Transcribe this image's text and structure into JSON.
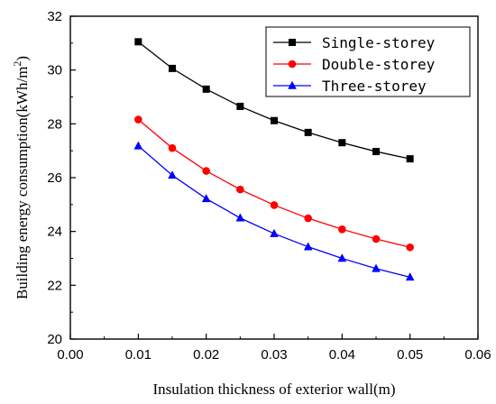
{
  "chart_data": {
    "type": "line",
    "xlabel": "Insulation thickness of exterior wall(m)",
    "ylabel_main": "Building energy consumption(kWh/m",
    "ylabel_sup": "2",
    "ylabel_close": ")",
    "xlim": [
      0.0,
      0.06
    ],
    "ylim": [
      20,
      32
    ],
    "x_ticks": [
      0.0,
      0.01,
      0.02,
      0.03,
      0.04,
      0.05,
      0.06
    ],
    "x_tick_labels": [
      "0.00",
      "0.01",
      "0.02",
      "0.03",
      "0.04",
      "0.05",
      "0.06"
    ],
    "y_ticks": [
      20,
      22,
      24,
      26,
      28,
      30,
      32
    ],
    "y_tick_labels": [
      "20",
      "22",
      "24",
      "26",
      "28",
      "30",
      "32"
    ],
    "grid": false,
    "legend_position": "top-right",
    "x": [
      0.01,
      0.015,
      0.02,
      0.025,
      0.03,
      0.035,
      0.04,
      0.045,
      0.05
    ],
    "series": [
      {
        "name": "Single-storey",
        "color": "#000000",
        "marker": "square",
        "values": [
          31.05,
          30.06,
          29.29,
          28.65,
          28.12,
          27.68,
          27.3,
          26.97,
          26.7
        ]
      },
      {
        "name": "Double-storey",
        "color": "#ff0000",
        "marker": "circle",
        "values": [
          28.16,
          27.1,
          26.25,
          25.56,
          24.98,
          24.49,
          24.08,
          23.72,
          23.41
        ]
      },
      {
        "name": "Three-storey",
        "color": "#0000ff",
        "marker": "triangle",
        "values": [
          27.18,
          26.09,
          25.22,
          24.5,
          23.92,
          23.43,
          23.0,
          22.62,
          22.3
        ]
      }
    ]
  }
}
